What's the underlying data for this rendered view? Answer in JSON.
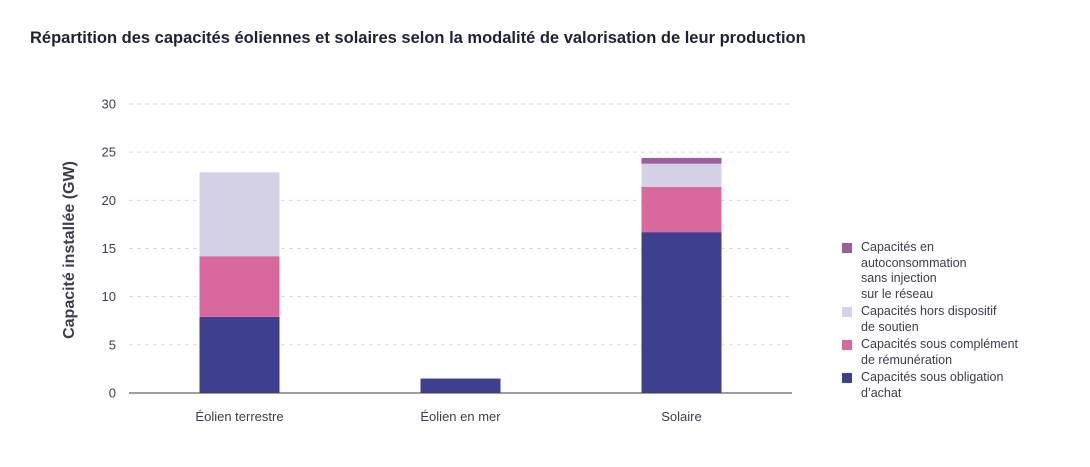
{
  "chart_data": {
    "type": "bar",
    "stacked": true,
    "title": "Répartition des capacités éoliennes et solaires selon la modalité de valorisation de leur production",
    "ylabel": "Capacité installée (GW)",
    "xlabel": "",
    "ylim": [
      0,
      30
    ],
    "yticks": [
      0,
      5,
      10,
      15,
      20,
      25,
      30
    ],
    "grid": true,
    "legend_position": "right",
    "categories": [
      "Éolien terrestre",
      "Éolien en mer",
      "Solaire"
    ],
    "series": [
      {
        "name": "Capacités sous obligation\nd’achat",
        "color": "#3f3f8f",
        "values": [
          7.9,
          1.5,
          16.7
        ]
      },
      {
        "name": "Capacités sous complément\nde rémunération",
        "color": "#d9699c",
        "values": [
          6.3,
          0,
          4.7
        ]
      },
      {
        "name": "Capacités hors dispositif\nde soutien",
        "color": "#d4d0e6",
        "values": [
          8.7,
          0,
          2.4
        ]
      },
      {
        "name": "Capacités en\nautoconsommation\nsans injection\nsur le réseau",
        "color": "#9b5fa0",
        "values": [
          0,
          0,
          0.6
        ]
      }
    ]
  }
}
